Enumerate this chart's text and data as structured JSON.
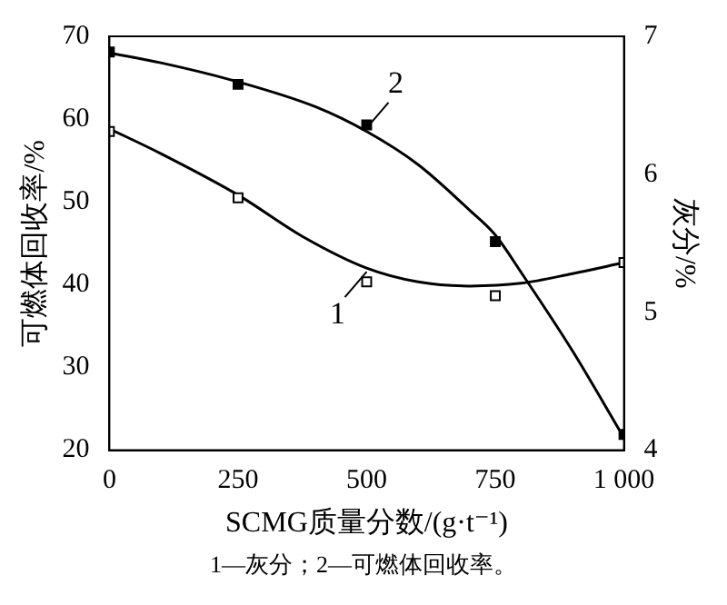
{
  "chart_data": {
    "type": "scatter",
    "xlabel": "SCMG质量分数/(g·t⁻¹)",
    "ylabel": "可燃体回收率/%",
    "y2label": "灰分/%",
    "xlim": [
      0,
      1000
    ],
    "xticks": [
      0,
      250,
      500,
      750,
      {
        "value": 1000,
        "label": "1 000"
      }
    ],
    "ylim": [
      20,
      70
    ],
    "yticks": [
      20,
      30,
      40,
      50,
      60,
      70
    ],
    "y2lim": [
      4,
      7
    ],
    "y2ticks": [
      4,
      5,
      6,
      7
    ],
    "grid": false,
    "series": [
      {
        "marker": "square",
        "color": "#000000",
        "x": [
          0,
          250,
          500,
          750,
          1000
        ],
        "values": [
          68.1,
          64.2,
          59.3,
          45.2,
          21.9
        ]
      },
      {
        "marker": "square",
        "color": "#ffffff",
        "axis": "y2",
        "x": [
          0,
          250,
          500,
          750,
          1000
        ],
        "values": [
          6.31,
          5.83,
          5.22,
          5.12,
          5.36
        ]
      },
      {
        "type": "line",
        "name": "2",
        "color": "#000000",
        "marker": "none",
        "x": [
          0,
          100,
          250,
          400,
          500,
          600,
          700,
          750,
          800,
          900,
          1000
        ],
        "values": [
          68,
          66.8,
          64.5,
          61.5,
          58.5,
          54.5,
          49,
          46,
          41.5,
          32,
          21.5
        ]
      },
      {
        "type": "line",
        "name": "1",
        "color": "#000000",
        "marker": "none",
        "axis": "y2",
        "x": [
          0,
          100,
          250,
          375,
          500,
          600,
          700,
          800,
          900,
          1000
        ],
        "values": [
          6.33,
          6.15,
          5.85,
          5.55,
          5.32,
          5.22,
          5.19,
          5.21,
          5.28,
          5.36
        ]
      }
    ],
    "annotations": [
      "1—灰分；2—可燃体回收率。"
    ]
  }
}
